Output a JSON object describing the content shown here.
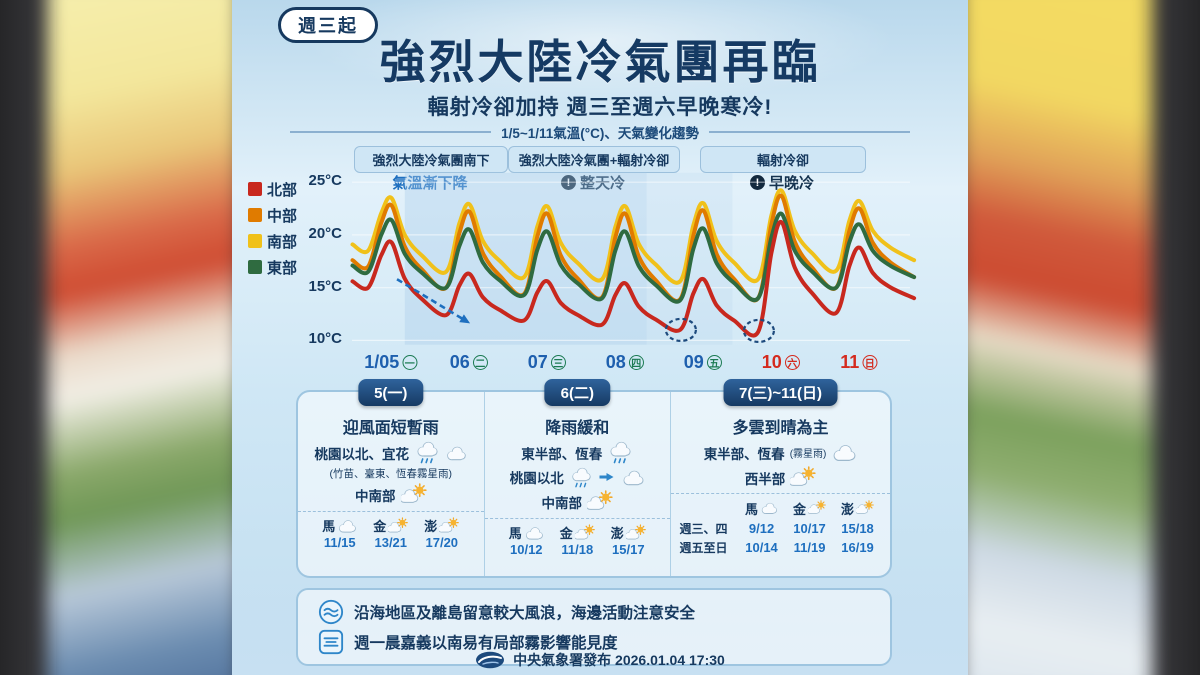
{
  "badge": "週三起",
  "title": "強烈大陸冷氣團再臨",
  "subtitle": "輻射冷卻加持 週三至週六早晚寒冷!",
  "chart_header": "1/5~1/11氣溫(°C)、天氣變化趨勢",
  "periods": [
    {
      "label": "強烈大陸冷氣團南下",
      "note": "氣溫漸下降",
      "alert": false
    },
    {
      "label": "強烈大陸冷氣團+輻射冷卻",
      "note": "整天冷",
      "alert": true
    },
    {
      "label": "輻射冷卻",
      "note": "早晚冷",
      "alert": true
    }
  ],
  "chart_data": {
    "type": "line",
    "title": "1/5~1/11氣溫(°C)、天氣變化趨勢",
    "ylabel": "氣溫(°C)",
    "ylim": [
      9.5,
      27
    ],
    "grid": true,
    "legend_position": "left",
    "yticks": [
      {
        "v": 25,
        "label": "25°C"
      },
      {
        "v": 20,
        "label": "20°C"
      },
      {
        "v": 15,
        "label": "15°C"
      },
      {
        "v": 10,
        "label": "10°C"
      }
    ],
    "days": [
      {
        "num": "1/05",
        "wd": "一",
        "weekend": false
      },
      {
        "num": "06",
        "wd": "二",
        "weekend": false
      },
      {
        "num": "07",
        "wd": "三",
        "weekend": false
      },
      {
        "num": "08",
        "wd": "四",
        "weekend": false
      },
      {
        "num": "09",
        "wd": "五",
        "weekend": false
      },
      {
        "num": "10",
        "wd": "六",
        "weekend": true
      },
      {
        "num": "11",
        "wd": "日",
        "weekend": true
      }
    ],
    "series": [
      {
        "name": "北部",
        "color": "#c8281e",
        "lows": [
          15,
          12.4,
          11.9,
          11.5,
          11,
          10.8,
          12.6,
          14
        ],
        "peaks": [
          19.3,
          16.3,
          15.6,
          15.4,
          15.8,
          21.2,
          18.8
        ]
      },
      {
        "name": "中部",
        "color": "#e07b00",
        "lows": [
          17,
          15,
          14.4,
          14.1,
          13.9,
          14,
          15,
          16
        ],
        "peaks": [
          22.8,
          22.2,
          22,
          22,
          22.3,
          23.7,
          22.5
        ]
      },
      {
        "name": "南部",
        "color": "#f0c11a",
        "lows": [
          18.5,
          16.5,
          16,
          15.8,
          15.6,
          15.8,
          16.6,
          17.6
        ],
        "peaks": [
          23.5,
          22.9,
          22.7,
          22.7,
          23,
          24.2,
          23.2
        ]
      },
      {
        "name": "東部",
        "color": "#2f6b40",
        "lows": [
          16.5,
          15,
          14.3,
          14,
          13.8,
          14,
          15,
          16
        ],
        "peaks": [
          21.4,
          20.5,
          20.3,
          20.3,
          20.6,
          22,
          21
        ]
      }
    ],
    "draw_order": [
      2,
      1,
      3,
      0
    ],
    "bands": [
      {
        "from": 0.6,
        "to": 3.7,
        "opacity": 0.38
      },
      {
        "from": 3.7,
        "to": 4.8,
        "opacity": 0.18
      }
    ],
    "arrow": {
      "from": [
        0.5,
        15.8
      ],
      "to": [
        1.35,
        12.0
      ]
    },
    "circles": [
      {
        "t": 4.14,
        "v": 11.0
      },
      {
        "t": 5.14,
        "v": 10.9
      }
    ]
  },
  "panels": [
    {
      "header": "5(一)",
      "title": "迎風面短暫雨",
      "rows": [
        {
          "text": "桃園以北、宜花"
        },
        {
          "text": "(竹苗、臺東、恆春霧星雨)"
        },
        {
          "text": "中南部"
        }
      ],
      "islands": [
        {
          "name": "馬",
          "icon": "cloud",
          "temp": "11/15"
        },
        {
          "name": "金",
          "icon": "partly",
          "temp": "13/21"
        },
        {
          "name": "澎",
          "icon": "partly",
          "temp": "17/20"
        }
      ]
    },
    {
      "header": "6(二)",
      "title": "降雨緩和",
      "rows": [
        {
          "text": "東半部、恆春"
        },
        {
          "text": "桃園以北"
        },
        {
          "text": "中南部"
        }
      ],
      "islands": [
        {
          "name": "馬",
          "icon": "cloud",
          "temp": "10/12"
        },
        {
          "name": "金",
          "icon": "partly",
          "temp": "11/18"
        },
        {
          "name": "澎",
          "icon": "partly",
          "temp": "15/17"
        }
      ]
    },
    {
      "header": "7(三)~11(日)",
      "title": "多雲到晴為主",
      "rows": [
        {
          "text": "東半部、恆春",
          "sub": "(霧星雨)"
        },
        {
          "text": "西半部"
        }
      ],
      "island_names": [
        {
          "name": "馬",
          "icon": "cloud"
        },
        {
          "name": "金",
          "icon": "partly"
        },
        {
          "name": "澎",
          "icon": "partly"
        }
      ],
      "temp_rows": [
        {
          "label": "週三、四",
          "temps": [
            "9/12",
            "10/17",
            "15/18"
          ]
        },
        {
          "label": "週五至日",
          "temps": [
            "10/14",
            "11/19",
            "16/19"
          ]
        }
      ]
    }
  ],
  "notes": [
    {
      "icon": "wave",
      "text": "沿海地區及離島留意較大風浪，海邊活動注意安全"
    },
    {
      "icon": "fog",
      "text": "週一晨嘉義以南易有局部霧影響能見度"
    }
  ],
  "footer": {
    "text": "中央氣象署發布 2026.01.04 17:30"
  }
}
